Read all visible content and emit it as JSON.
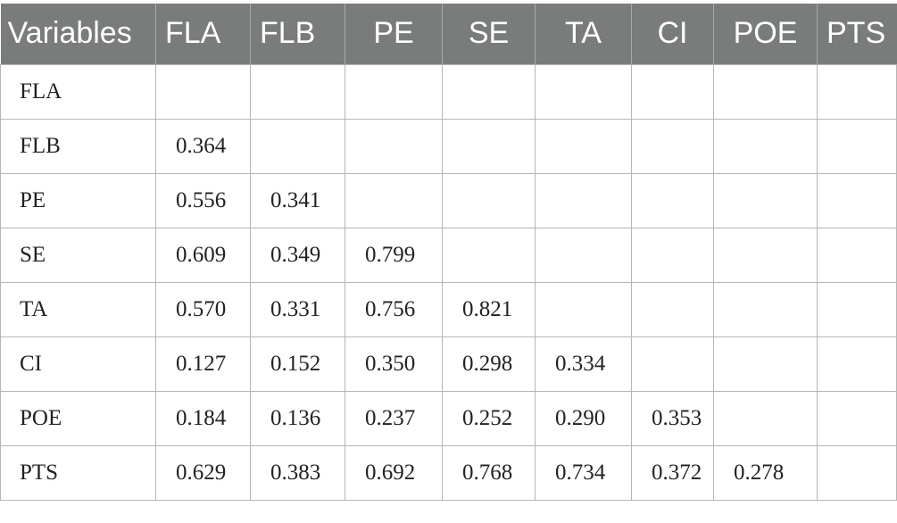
{
  "table": {
    "headers": [
      "Variables",
      "FLA",
      "FLB",
      "PE",
      "SE",
      "TA",
      "CI",
      "POE",
      "PTS"
    ],
    "rows": [
      {
        "label": "FLA",
        "values": [
          "",
          "",
          "",
          "",
          "",
          "",
          "",
          ""
        ]
      },
      {
        "label": "FLB",
        "values": [
          "0.364",
          "",
          "",
          "",
          "",
          "",
          "",
          ""
        ]
      },
      {
        "label": "PE",
        "values": [
          "0.556",
          "0.341",
          "",
          "",
          "",
          "",
          "",
          ""
        ]
      },
      {
        "label": "SE",
        "values": [
          "0.609",
          "0.349",
          "0.799",
          "",
          "",
          "",
          "",
          ""
        ]
      },
      {
        "label": "TA",
        "values": [
          "0.570",
          "0.331",
          "0.756",
          "0.821",
          "",
          "",
          "",
          ""
        ]
      },
      {
        "label": "CI",
        "values": [
          "0.127",
          "0.152",
          "0.350",
          "0.298",
          "0.334",
          "",
          "",
          ""
        ]
      },
      {
        "label": "POE",
        "values": [
          "0.184",
          "0.136",
          "0.237",
          "0.252",
          "0.290",
          "0.353",
          "",
          ""
        ]
      },
      {
        "label": "PTS",
        "values": [
          "0.629",
          "0.383",
          "0.692",
          "0.768",
          "0.734",
          "0.372",
          "0.278",
          ""
        ]
      }
    ]
  },
  "colors": {
    "header_bg": "#7a7c7b",
    "header_text": "#ffffff",
    "grid": "#b5b5b5"
  }
}
